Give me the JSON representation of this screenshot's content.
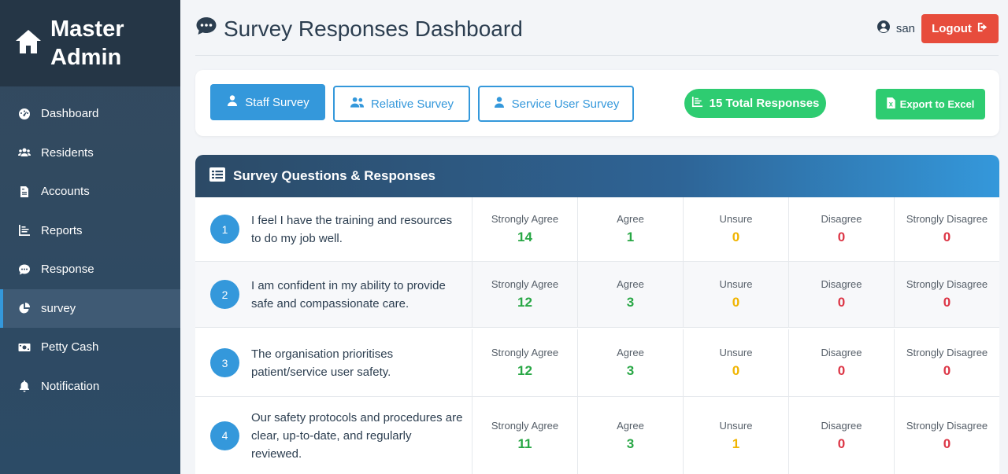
{
  "brand": {
    "line1": "Master",
    "line2": "Admin"
  },
  "nav": [
    {
      "label": "Dashboard",
      "icon": "gauge-icon"
    },
    {
      "label": "Residents",
      "icon": "users-icon"
    },
    {
      "label": "Accounts",
      "icon": "file-invoice-icon"
    },
    {
      "label": "Reports",
      "icon": "chart-line-icon"
    },
    {
      "label": "Response",
      "icon": "comment-dots-icon"
    },
    {
      "label": "survey",
      "icon": "chart-pie-icon",
      "active": true
    },
    {
      "label": "Petty Cash",
      "icon": "money-bill-icon"
    },
    {
      "label": "Notification",
      "icon": "bell-icon"
    }
  ],
  "header": {
    "title": "Survey Responses Dashboard",
    "user": "san",
    "logout": "Logout"
  },
  "toolbar": {
    "staff": "Staff Survey",
    "relative": "Relative Survey",
    "service_user": "Service User Survey",
    "total": "15 Total Responses",
    "export": "Export to Excel"
  },
  "questions_title": "Survey Questions & Responses",
  "response_labels": [
    "Strongly Agree",
    "Agree",
    "Unsure",
    "Disagree",
    "Strongly Disagree"
  ],
  "questions": [
    {
      "num": "1",
      "text": "I feel I have the training and resources to do my job well.",
      "values": [
        "14",
        "1",
        "0",
        "0",
        "0"
      ]
    },
    {
      "num": "2",
      "text": "I am confident in my ability to provide safe and compassionate care.",
      "values": [
        "12",
        "3",
        "0",
        "0",
        "0"
      ]
    },
    {
      "num": "3",
      "text": "The organisation prioritises patient/service user safety.",
      "values": [
        "12",
        "3",
        "0",
        "0",
        "0"
      ]
    },
    {
      "num": "4",
      "text": "Our safety protocols and procedures are clear, up-to-date, and regularly reviewed.",
      "values": [
        "11",
        "3",
        "1",
        "0",
        "0"
      ]
    }
  ],
  "colors": {
    "primary": "#3498db",
    "success": "#2ecc71",
    "danger": "#e74c3c",
    "sidebar": "#34495e"
  }
}
